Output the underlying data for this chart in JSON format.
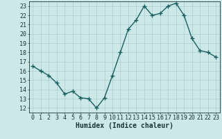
{
  "xlabel": "Humidex (Indice chaleur)",
  "x": [
    0,
    1,
    2,
    3,
    4,
    5,
    6,
    7,
    8,
    9,
    10,
    11,
    12,
    13,
    14,
    15,
    16,
    17,
    18,
    19,
    20,
    21,
    22,
    23
  ],
  "y": [
    16.5,
    16.0,
    15.5,
    14.7,
    13.5,
    13.8,
    13.1,
    13.0,
    12.0,
    13.1,
    15.5,
    18.0,
    20.5,
    21.5,
    23.0,
    22.0,
    22.2,
    23.0,
    23.3,
    22.0,
    19.5,
    18.2,
    18.0,
    17.5
  ],
  "line_color": "#1a5f5f",
  "bg_color": "#cce8e8",
  "grid_color": "#aacfcf",
  "text_color": "#1a3333",
  "ylim_min": 11.5,
  "ylim_max": 23.5,
  "yticks": [
    12,
    13,
    14,
    15,
    16,
    17,
    18,
    19,
    20,
    21,
    22,
    23
  ],
  "xticks": [
    0,
    1,
    2,
    3,
    4,
    5,
    6,
    7,
    8,
    9,
    10,
    11,
    12,
    13,
    14,
    15,
    16,
    17,
    18,
    19,
    20,
    21,
    22,
    23
  ],
  "marker": "+",
  "linewidth": 1.0,
  "markersize": 4,
  "markeredgewidth": 1.0,
  "xlabel_fontsize": 7,
  "tick_fontsize": 6
}
